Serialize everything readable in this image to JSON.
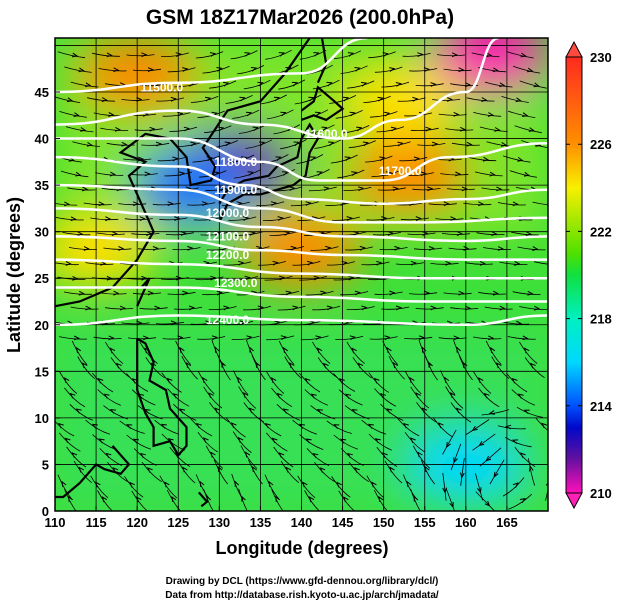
{
  "title": "GSM 18Z17Mar2026 (200.0hPa)",
  "footer": {
    "line1": "Drawing by DCL (https://www.gfd-dennou.org/library/dcl/)",
    "line2": "Data from http://database.rish.kyoto-u.ac.jp/arch/jmadata/"
  },
  "chart_data": {
    "type": "map",
    "xlabel": "Longitude (degrees)",
    "ylabel": "Latitude  (degrees)",
    "xlim": [
      110,
      170
    ],
    "ylim": [
      0,
      50.8
    ],
    "xticks": [
      "110",
      "115",
      "120",
      "125",
      "130",
      "135",
      "140",
      "145",
      "150",
      "155",
      "160",
      "165"
    ],
    "yticks": [
      "0",
      "5",
      "10",
      "15",
      "20",
      "25",
      "30",
      "35",
      "40",
      "45"
    ],
    "colorbar": {
      "range": [
        210,
        230
      ],
      "tick_labels": [
        "230",
        "226",
        "222",
        "218",
        "214",
        "210"
      ],
      "colors": [
        "#ff3030",
        "#ff8a00",
        "#ffe000",
        "#b0f000",
        "#20e020",
        "#00f0c0",
        "#00d8ff",
        "#0070ff",
        "#0010d0",
        "#7010a0",
        "#ff10b0"
      ]
    },
    "contours": [
      {
        "label": "11500.0",
        "label_at": [
          123,
          45.5
        ],
        "pts": [
          [
            110,
            45
          ],
          [
            125,
            46
          ],
          [
            140,
            47
          ],
          [
            148,
            50.8
          ]
        ]
      },
      {
        "label": "11600.0",
        "label_at": [
          143,
          40.5
        ],
        "pts": [
          [
            110,
            41.5
          ],
          [
            125,
            43
          ],
          [
            135,
            41.5
          ],
          [
            145,
            40
          ],
          [
            152,
            42
          ],
          [
            160,
            45
          ],
          [
            164,
            50.8
          ]
        ]
      },
      {
        "label": "11700.0",
        "label_at": [
          152,
          36.5
        ],
        "pts": [
          [
            110,
            40
          ],
          [
            125,
            40
          ],
          [
            135,
            37.5
          ],
          [
            142,
            35.5
          ],
          [
            150,
            35.5
          ],
          [
            158,
            38
          ],
          [
            170,
            39.5
          ]
        ]
      },
      {
        "label": "11800.0",
        "label_at": [
          132,
          37.5
        ],
        "pts": [
          [
            110,
            38
          ],
          [
            125,
            37
          ],
          [
            133,
            35
          ],
          [
            140,
            33.5
          ],
          [
            150,
            33
          ],
          [
            160,
            33.5
          ],
          [
            170,
            34.5
          ]
        ]
      },
      {
        "label": "11900.0",
        "label_at": [
          132,
          34.5
        ],
        "pts": [
          [
            110,
            35
          ],
          [
            125,
            34.5
          ],
          [
            135,
            32.5
          ],
          [
            145,
            31
          ],
          [
            155,
            31
          ],
          [
            170,
            31.5
          ]
        ]
      },
      {
        "label": "12000.0",
        "label_at": [
          131,
          32
        ],
        "pts": [
          [
            110,
            32.5
          ],
          [
            125,
            31.8
          ],
          [
            135,
            30.5
          ],
          [
            145,
            29.5
          ],
          [
            160,
            29
          ],
          [
            170,
            29.5
          ]
        ]
      },
      {
        "label": "12100.0",
        "label_at": [
          131,
          29.5
        ],
        "pts": [
          [
            110,
            29.5
          ],
          [
            125,
            29
          ],
          [
            135,
            28
          ],
          [
            145,
            27.5
          ],
          [
            160,
            27
          ],
          [
            170,
            27
          ]
        ]
      },
      {
        "label": "12200.0",
        "label_at": [
          131,
          27.5
        ],
        "pts": [
          [
            110,
            27
          ],
          [
            125,
            26.5
          ],
          [
            140,
            25.5
          ],
          [
            155,
            25
          ],
          [
            170,
            25
          ]
        ]
      },
      {
        "label": "12300.0",
        "label_at": [
          132,
          24.5
        ],
        "pts": [
          [
            110,
            24
          ],
          [
            125,
            24
          ],
          [
            140,
            23
          ],
          [
            155,
            22.5
          ],
          [
            170,
            22.5
          ]
        ]
      },
      {
        "label": "12400.0",
        "label_at": [
          131,
          20.5
        ],
        "pts": [
          [
            110,
            20
          ],
          [
            125,
            21
          ],
          [
            140,
            20.5
          ],
          [
            160,
            20
          ],
          [
            170,
            21
          ]
        ]
      }
    ],
    "temperature_blobs": [
      {
        "lon": 132,
        "lat": 37,
        "value": 213
      },
      {
        "lon": 153,
        "lat": 36,
        "value": 229
      },
      {
        "lon": 140,
        "lat": 28,
        "value": 228
      },
      {
        "lon": 120,
        "lat": 47,
        "value": 228
      },
      {
        "lon": 163,
        "lat": 49,
        "value": 211
      },
      {
        "lon": 152,
        "lat": 44,
        "value": 226
      },
      {
        "lon": 127,
        "lat": 35,
        "value": 217
      },
      {
        "lon": 160,
        "lat": 5,
        "value": 219
      },
      {
        "lon": 115,
        "lat": 28,
        "value": 226
      }
    ]
  }
}
